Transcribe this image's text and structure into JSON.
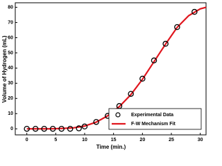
{
  "chart_data": {
    "type": "scatter-line",
    "xlabel": "Time (min.)",
    "ylabel": "Volume of Hydrogen (mL)",
    "xlim": [
      -2,
      31
    ],
    "ylim": [
      -4,
      83
    ],
    "xticks": [
      0,
      5,
      10,
      15,
      20,
      25,
      30
    ],
    "yticks": [
      0,
      10,
      20,
      30,
      40,
      50,
      60,
      70,
      80
    ],
    "legend": "lower right",
    "series": [
      {
        "name": "Experimental Data",
        "kind": "markers",
        "color": "#000000",
        "x": [
          0,
          1.5,
          3,
          4.5,
          6,
          7.5,
          9,
          10,
          12,
          14,
          16,
          18,
          20,
          22,
          24,
          26,
          29
        ],
        "values": [
          0,
          0,
          0,
          0,
          0,
          0,
          0.3,
          1.5,
          4.5,
          8.5,
          15,
          23,
          33,
          45,
          56,
          67,
          77
        ]
      },
      {
        "name": "F-W Mechanism Fit",
        "kind": "line",
        "color": "#e0161e",
        "x": [
          0,
          2,
          4,
          6,
          8,
          10,
          12,
          14,
          16,
          18,
          20,
          22,
          24,
          26,
          28,
          30,
          31
        ],
        "values": [
          0,
          0,
          0,
          0.2,
          0.6,
          1.8,
          4.4,
          8.6,
          14.6,
          22.5,
          32.6,
          44.2,
          55.8,
          66.8,
          74.5,
          79,
          80
        ]
      }
    ]
  }
}
